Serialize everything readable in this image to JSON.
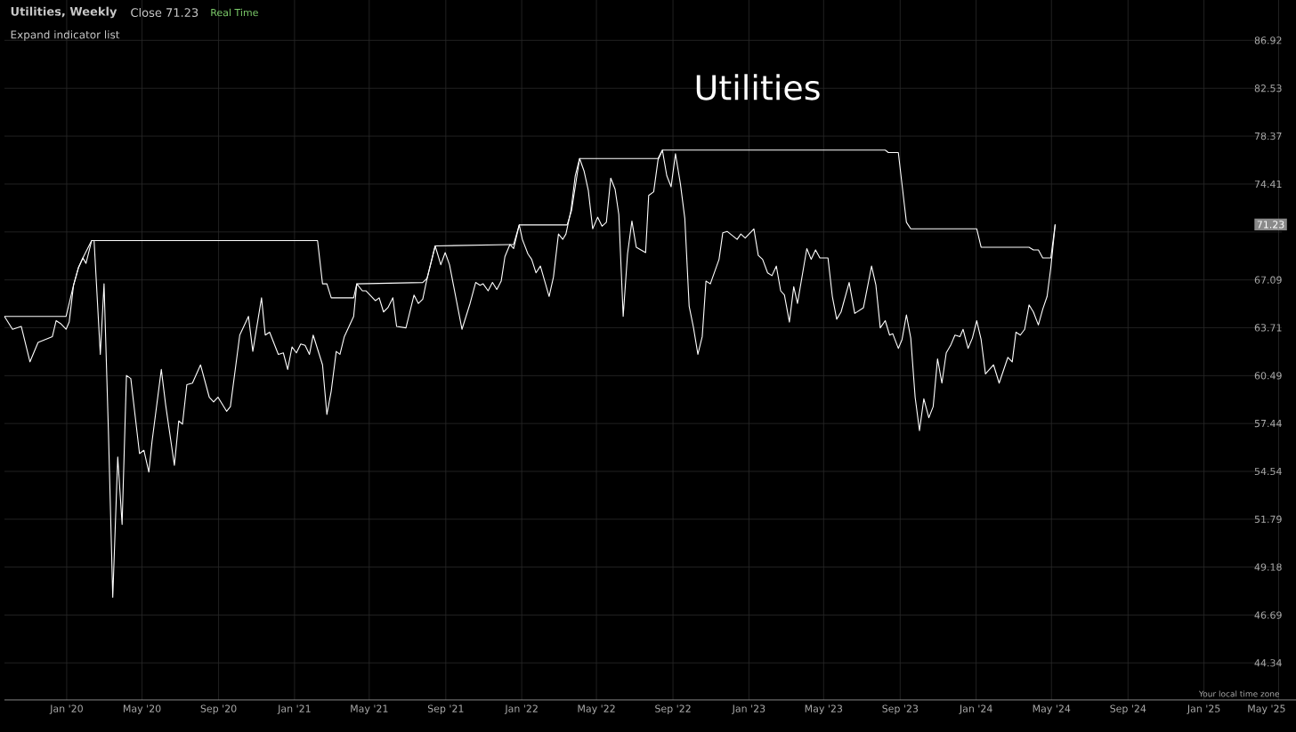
{
  "chart_data": {
    "type": "line",
    "title": "Utilities",
    "annotations": [
      "Utilities, Weekly",
      "Close 71.23",
      "Real Time",
      "Expand indicator list",
      "Your local time zone",
      {
        "text": "71.23",
        "y": 71.23
      }
    ],
    "xlim": [
      "2019-09-23",
      "2025-05-06"
    ],
    "xticks": [
      {
        "value": "2020-01-01",
        "label": "Jan '20"
      },
      {
        "value": "2020-05-01",
        "label": "May '20"
      },
      {
        "value": "2020-09-01",
        "label": "Sep '20"
      },
      {
        "value": "2021-01-01",
        "label": "Jan '21"
      },
      {
        "value": "2021-05-01",
        "label": "May '21"
      },
      {
        "value": "2021-09-01",
        "label": "Sep '21"
      },
      {
        "value": "2022-01-01",
        "label": "Jan '22"
      },
      {
        "value": "2022-05-01",
        "label": "May '22"
      },
      {
        "value": "2022-09-01",
        "label": "Sep '22"
      },
      {
        "value": "2023-01-01",
        "label": "Jan '23"
      },
      {
        "value": "2023-05-01",
        "label": "May '23"
      },
      {
        "value": "2023-09-01",
        "label": "Sep '23"
      },
      {
        "value": "2024-01-01",
        "label": "Jan '24"
      },
      {
        "value": "2024-05-01",
        "label": "May '24"
      },
      {
        "value": "2024-09-01",
        "label": "Sep '24"
      },
      {
        "value": "2025-01-01",
        "label": "Jan '25"
      },
      {
        "value": "2025-05-01",
        "label": "May '25"
      }
    ],
    "ylim": [
      42.6,
      90.8
    ],
    "yticks": [
      44.34,
      46.69,
      49.18,
      51.79,
      54.54,
      57.44,
      60.49,
      63.71,
      67.09,
      {
        "value": 70.66,
        "label": null
      },
      74.41,
      78.37,
      82.53,
      86.92
    ],
    "log": true,
    "grid": true,
    "series": [
      {
        "color": "#ffffff",
        "x": [
          "2019-09-23",
          "2019-10-06",
          "2019-10-20",
          "2019-11-03",
          "2019-11-16",
          "2019-12-09",
          "2019-12-15",
          "2019-12-22",
          "2019-12-31",
          "2020-01-05",
          "2020-01-12",
          "2020-01-20",
          "2020-01-27",
          "2020-02-01",
          "2020-02-10",
          "2020-02-14",
          "2020-02-24",
          "2020-03-01",
          "2020-03-08",
          "2020-03-15",
          "2020-03-23",
          "2020-03-30",
          "2020-04-06",
          "2020-04-13",
          "2020-04-27",
          "2020-05-04",
          "2020-05-12",
          "2020-05-17",
          "2020-06-01",
          "2020-06-08",
          "2020-06-22",
          "2020-06-29",
          "2020-07-05",
          "2020-07-12",
          "2020-07-21",
          "2020-08-03",
          "2020-08-17",
          "2020-08-24",
          "2020-08-31",
          "2020-09-14",
          "2020-09-20",
          "2020-10-05",
          "2020-10-19",
          "2020-10-26",
          "2020-11-09",
          "2020-11-15",
          "2020-11-22",
          "2020-12-06",
          "2020-12-14",
          "2020-12-21",
          "2020-12-28",
          "2021-01-04",
          "2021-01-11",
          "2021-01-18",
          "2021-01-25",
          "2021-01-31",
          "2021-02-15",
          "2021-02-22",
          "2021-03-01",
          "2021-03-09",
          "2021-03-15",
          "2021-03-22",
          "2021-04-06",
          "2021-04-11",
          "2021-04-20",
          "2021-04-26",
          "2021-05-11",
          "2021-05-17",
          "2021-05-24",
          "2021-05-31",
          "2021-06-08",
          "2021-06-14",
          "2021-06-29",
          "2021-07-12",
          "2021-07-19",
          "2021-07-26",
          "2021-08-02",
          "2021-08-15",
          "2021-08-24",
          "2021-08-31",
          "2021-09-07",
          "2021-09-27",
          "2021-10-10",
          "2021-10-19",
          "2021-10-26",
          "2021-10-31",
          "2021-11-08",
          "2021-11-15",
          "2021-11-22",
          "2021-11-29",
          "2021-12-05",
          "2021-12-13",
          "2021-12-19",
          "2021-12-28",
          "2022-01-02",
          "2022-01-11",
          "2022-01-17",
          "2022-01-24",
          "2022-01-31",
          "2022-02-14",
          "2022-02-21",
          "2022-03-01",
          "2022-03-08",
          "2022-03-13",
          "2022-03-21",
          "2022-03-28",
          "2022-04-04",
          "2022-04-11",
          "2022-04-18",
          "2022-04-25",
          "2022-05-03",
          "2022-05-10",
          "2022-05-17",
          "2022-05-24",
          "2022-05-31",
          "2022-06-06",
          "2022-06-13",
          "2022-06-20",
          "2022-06-27",
          "2022-07-04",
          "2022-07-19",
          "2022-07-24",
          "2022-08-01",
          "2022-08-08",
          "2022-08-15",
          "2022-08-22",
          "2022-08-29",
          "2022-09-05",
          "2022-09-13",
          "2022-09-20",
          "2022-09-27",
          "2022-10-04",
          "2022-10-11",
          "2022-10-18",
          "2022-10-24",
          "2022-10-31",
          "2022-11-14",
          "2022-11-20",
          "2022-11-27",
          "2022-12-13",
          "2022-12-19",
          "2022-12-26",
          "2023-01-09",
          "2023-01-16",
          "2023-01-23",
          "2023-01-31",
          "2023-02-07",
          "2023-02-14",
          "2023-02-21",
          "2023-02-27",
          "2023-03-07",
          "2023-03-14",
          "2023-03-20",
          "2023-04-04",
          "2023-04-11",
          "2023-04-18",
          "2023-04-25",
          "2023-05-08",
          "2023-05-15",
          "2023-05-22",
          "2023-05-29",
          "2023-06-11",
          "2023-06-20",
          "2023-07-04",
          "2023-07-17",
          "2023-07-24",
          "2023-07-31",
          "2023-08-08",
          "2023-08-15",
          "2023-08-20",
          "2023-08-29",
          "2023-09-04",
          "2023-09-11",
          "2023-09-18",
          "2023-09-25",
          "2023-10-02",
          "2023-10-09",
          "2023-10-17",
          "2023-10-24",
          "2023-10-31",
          "2023-11-07",
          "2023-11-14",
          "2023-11-21",
          "2023-11-28",
          "2023-12-06",
          "2023-12-11",
          "2023-12-19",
          "2023-12-26",
          "2024-01-02",
          "2024-01-09",
          "2024-01-16",
          "2024-01-29",
          "2024-02-07",
          "2024-02-21",
          "2024-02-28",
          "2024-03-05",
          "2024-03-12",
          "2024-03-19",
          "2024-03-26",
          "2024-04-02",
          "2024-04-10",
          "2024-04-17",
          "2024-04-24",
          "2024-04-30",
          "2024-05-07"
        ],
        "values": [
          64.5,
          63.6,
          63.8,
          61.4,
          62.7,
          63.1,
          64.2,
          64.0,
          63.6,
          64.1,
          66.7,
          68.0,
          68.7,
          68.3,
          70.0,
          70.0,
          61.9,
          66.8,
          57.0,
          47.6,
          55.4,
          51.5,
          60.5,
          60.3,
          55.6,
          55.8,
          54.5,
          56.3,
          60.9,
          58.6,
          54.9,
          57.6,
          57.4,
          59.9,
          60.0,
          61.2,
          59.1,
          58.8,
          59.1,
          58.2,
          58.5,
          63.2,
          64.5,
          62.1,
          65.8,
          63.2,
          63.4,
          61.9,
          62.0,
          60.9,
          62.4,
          62.0,
          62.6,
          62.5,
          61.9,
          63.2,
          61.2,
          58.0,
          59.5,
          62.1,
          61.9,
          63.1,
          64.5,
          66.8,
          66.3,
          66.3,
          65.6,
          65.8,
          64.8,
          65.1,
          65.8,
          63.8,
          63.7,
          66.0,
          65.4,
          65.7,
          67.2,
          69.6,
          68.2,
          69.1,
          68.2,
          63.6,
          65.4,
          66.9,
          66.7,
          66.8,
          66.3,
          66.9,
          66.4,
          67.0,
          68.8,
          69.7,
          69.4,
          71.2,
          70.1,
          69.0,
          68.6,
          67.6,
          68.1,
          65.9,
          67.3,
          70.5,
          70.1,
          70.5,
          72.3,
          75.1,
          76.5,
          75.5,
          73.9,
          70.9,
          71.8,
          71.1,
          71.4,
          74.9,
          74.0,
          72.0,
          64.5,
          69.0,
          71.5,
          69.5,
          69.1,
          73.5,
          73.8,
          76.4,
          77.2,
          75.1,
          74.2,
          76.9,
          74.4,
          71.7,
          65.2,
          63.7,
          61.9,
          63.1,
          67.0,
          66.8,
          68.6,
          70.6,
          70.7,
          70.1,
          70.5,
          70.2,
          70.9,
          68.9,
          68.6,
          67.6,
          67.4,
          68.1,
          66.3,
          66.0,
          64.1,
          66.6,
          65.4,
          69.4,
          68.6,
          69.3,
          68.7,
          68.7,
          65.9,
          64.3,
          64.8,
          66.9,
          64.7,
          65.1,
          68.1,
          66.7,
          63.7,
          64.2,
          63.2,
          63.3,
          62.3,
          62.9,
          64.6,
          63.0,
          59.1,
          57.0,
          59.0,
          57.8,
          58.5,
          61.6,
          60.0,
          62.0,
          62.5,
          63.2,
          63.1,
          63.6,
          62.3,
          63.0,
          64.2,
          62.9,
          60.6,
          61.2,
          60.0,
          61.7,
          61.4,
          63.4,
          63.2,
          63.6,
          65.3,
          64.8,
          63.9,
          65.0,
          65.9,
          68.0,
          71.23
        ]
      },
      {
        "color": "#ffffff",
        "x": [
          "2019-09-23",
          "2019-12-31",
          "2020-01-12",
          "2020-01-20",
          "2020-01-27",
          "2020-02-10",
          "2021-02-07",
          "2021-02-15",
          "2021-02-22",
          "2021-03-01",
          "2021-04-06",
          "2021-04-11",
          "2021-07-26",
          "2021-08-02",
          "2021-08-15",
          "2021-12-12",
          "2021-12-19",
          "2021-12-28",
          "2022-03-15",
          "2022-03-22",
          "2022-04-04",
          "2022-08-08",
          "2022-08-15",
          "2023-08-08",
          "2023-08-13",
          "2023-08-29",
          "2023-09-11",
          "2023-09-18",
          "2024-01-02",
          "2024-01-09",
          "2024-03-26",
          "2024-04-02",
          "2024-04-10",
          "2024-04-17",
          "2024-04-30",
          "2024-05-07"
        ],
        "values": [
          64.5,
          64.5,
          66.7,
          68.0,
          68.7,
          70.0,
          70.0,
          66.8,
          66.8,
          65.8,
          65.8,
          66.8,
          66.9,
          67.2,
          69.6,
          69.7,
          69.7,
          71.2,
          71.2,
          72.3,
          76.5,
          76.5,
          77.2,
          77.2,
          77.0,
          77.0,
          71.4,
          70.9,
          70.9,
          69.5,
          69.5,
          69.3,
          69.3,
          68.7,
          68.7,
          71.23
        ]
      }
    ]
  }
}
